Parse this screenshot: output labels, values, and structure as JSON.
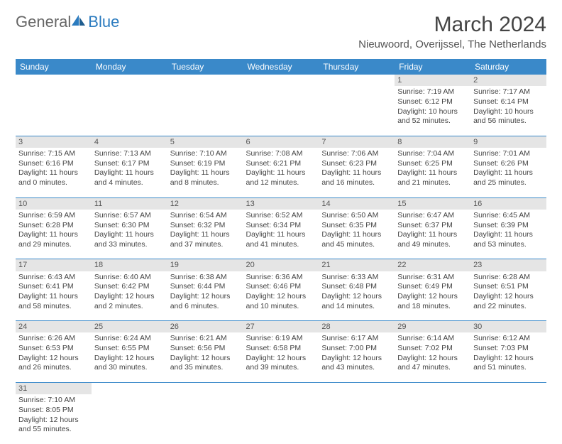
{
  "logo": {
    "text1": "General",
    "text2": "Blue"
  },
  "title": "March 2024",
  "location": "Nieuwoord, Overijssel, The Netherlands",
  "colors": {
    "header_bg": "#3a89c9",
    "header_text": "#ffffff",
    "daynum_bg": "#e5e5e5",
    "border": "#3a89c9",
    "logo_blue": "#2b7bbf",
    "text": "#444444"
  },
  "weekdays": [
    "Sunday",
    "Monday",
    "Tuesday",
    "Wednesday",
    "Thursday",
    "Friday",
    "Saturday"
  ],
  "weeks": [
    [
      null,
      null,
      null,
      null,
      null,
      {
        "d": "1",
        "sr": "Sunrise: 7:19 AM",
        "ss": "Sunset: 6:12 PM",
        "dl1": "Daylight: 10 hours",
        "dl2": "and 52 minutes."
      },
      {
        "d": "2",
        "sr": "Sunrise: 7:17 AM",
        "ss": "Sunset: 6:14 PM",
        "dl1": "Daylight: 10 hours",
        "dl2": "and 56 minutes."
      }
    ],
    [
      {
        "d": "3",
        "sr": "Sunrise: 7:15 AM",
        "ss": "Sunset: 6:16 PM",
        "dl1": "Daylight: 11 hours",
        "dl2": "and 0 minutes."
      },
      {
        "d": "4",
        "sr": "Sunrise: 7:13 AM",
        "ss": "Sunset: 6:17 PM",
        "dl1": "Daylight: 11 hours",
        "dl2": "and 4 minutes."
      },
      {
        "d": "5",
        "sr": "Sunrise: 7:10 AM",
        "ss": "Sunset: 6:19 PM",
        "dl1": "Daylight: 11 hours",
        "dl2": "and 8 minutes."
      },
      {
        "d": "6",
        "sr": "Sunrise: 7:08 AM",
        "ss": "Sunset: 6:21 PM",
        "dl1": "Daylight: 11 hours",
        "dl2": "and 12 minutes."
      },
      {
        "d": "7",
        "sr": "Sunrise: 7:06 AM",
        "ss": "Sunset: 6:23 PM",
        "dl1": "Daylight: 11 hours",
        "dl2": "and 16 minutes."
      },
      {
        "d": "8",
        "sr": "Sunrise: 7:04 AM",
        "ss": "Sunset: 6:25 PM",
        "dl1": "Daylight: 11 hours",
        "dl2": "and 21 minutes."
      },
      {
        "d": "9",
        "sr": "Sunrise: 7:01 AM",
        "ss": "Sunset: 6:26 PM",
        "dl1": "Daylight: 11 hours",
        "dl2": "and 25 minutes."
      }
    ],
    [
      {
        "d": "10",
        "sr": "Sunrise: 6:59 AM",
        "ss": "Sunset: 6:28 PM",
        "dl1": "Daylight: 11 hours",
        "dl2": "and 29 minutes."
      },
      {
        "d": "11",
        "sr": "Sunrise: 6:57 AM",
        "ss": "Sunset: 6:30 PM",
        "dl1": "Daylight: 11 hours",
        "dl2": "and 33 minutes."
      },
      {
        "d": "12",
        "sr": "Sunrise: 6:54 AM",
        "ss": "Sunset: 6:32 PM",
        "dl1": "Daylight: 11 hours",
        "dl2": "and 37 minutes."
      },
      {
        "d": "13",
        "sr": "Sunrise: 6:52 AM",
        "ss": "Sunset: 6:34 PM",
        "dl1": "Daylight: 11 hours",
        "dl2": "and 41 minutes."
      },
      {
        "d": "14",
        "sr": "Sunrise: 6:50 AM",
        "ss": "Sunset: 6:35 PM",
        "dl1": "Daylight: 11 hours",
        "dl2": "and 45 minutes."
      },
      {
        "d": "15",
        "sr": "Sunrise: 6:47 AM",
        "ss": "Sunset: 6:37 PM",
        "dl1": "Daylight: 11 hours",
        "dl2": "and 49 minutes."
      },
      {
        "d": "16",
        "sr": "Sunrise: 6:45 AM",
        "ss": "Sunset: 6:39 PM",
        "dl1": "Daylight: 11 hours",
        "dl2": "and 53 minutes."
      }
    ],
    [
      {
        "d": "17",
        "sr": "Sunrise: 6:43 AM",
        "ss": "Sunset: 6:41 PM",
        "dl1": "Daylight: 11 hours",
        "dl2": "and 58 minutes."
      },
      {
        "d": "18",
        "sr": "Sunrise: 6:40 AM",
        "ss": "Sunset: 6:42 PM",
        "dl1": "Daylight: 12 hours",
        "dl2": "and 2 minutes."
      },
      {
        "d": "19",
        "sr": "Sunrise: 6:38 AM",
        "ss": "Sunset: 6:44 PM",
        "dl1": "Daylight: 12 hours",
        "dl2": "and 6 minutes."
      },
      {
        "d": "20",
        "sr": "Sunrise: 6:36 AM",
        "ss": "Sunset: 6:46 PM",
        "dl1": "Daylight: 12 hours",
        "dl2": "and 10 minutes."
      },
      {
        "d": "21",
        "sr": "Sunrise: 6:33 AM",
        "ss": "Sunset: 6:48 PM",
        "dl1": "Daylight: 12 hours",
        "dl2": "and 14 minutes."
      },
      {
        "d": "22",
        "sr": "Sunrise: 6:31 AM",
        "ss": "Sunset: 6:49 PM",
        "dl1": "Daylight: 12 hours",
        "dl2": "and 18 minutes."
      },
      {
        "d": "23",
        "sr": "Sunrise: 6:28 AM",
        "ss": "Sunset: 6:51 PM",
        "dl1": "Daylight: 12 hours",
        "dl2": "and 22 minutes."
      }
    ],
    [
      {
        "d": "24",
        "sr": "Sunrise: 6:26 AM",
        "ss": "Sunset: 6:53 PM",
        "dl1": "Daylight: 12 hours",
        "dl2": "and 26 minutes."
      },
      {
        "d": "25",
        "sr": "Sunrise: 6:24 AM",
        "ss": "Sunset: 6:55 PM",
        "dl1": "Daylight: 12 hours",
        "dl2": "and 30 minutes."
      },
      {
        "d": "26",
        "sr": "Sunrise: 6:21 AM",
        "ss": "Sunset: 6:56 PM",
        "dl1": "Daylight: 12 hours",
        "dl2": "and 35 minutes."
      },
      {
        "d": "27",
        "sr": "Sunrise: 6:19 AM",
        "ss": "Sunset: 6:58 PM",
        "dl1": "Daylight: 12 hours",
        "dl2": "and 39 minutes."
      },
      {
        "d": "28",
        "sr": "Sunrise: 6:17 AM",
        "ss": "Sunset: 7:00 PM",
        "dl1": "Daylight: 12 hours",
        "dl2": "and 43 minutes."
      },
      {
        "d": "29",
        "sr": "Sunrise: 6:14 AM",
        "ss": "Sunset: 7:02 PM",
        "dl1": "Daylight: 12 hours",
        "dl2": "and 47 minutes."
      },
      {
        "d": "30",
        "sr": "Sunrise: 6:12 AM",
        "ss": "Sunset: 7:03 PM",
        "dl1": "Daylight: 12 hours",
        "dl2": "and 51 minutes."
      }
    ],
    [
      {
        "d": "31",
        "sr": "Sunrise: 7:10 AM",
        "ss": "Sunset: 8:05 PM",
        "dl1": "Daylight: 12 hours",
        "dl2": "and 55 minutes."
      },
      null,
      null,
      null,
      null,
      null,
      null
    ]
  ]
}
